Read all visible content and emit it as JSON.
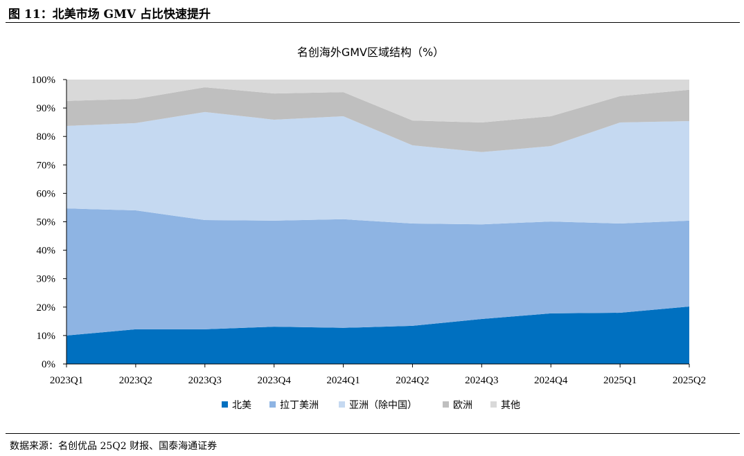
{
  "header": {
    "title": "图 11：北美市场 GMV 占比快速提升"
  },
  "footer": {
    "source": "数据来源：名创优品 25Q2 财报、国泰海通证券"
  },
  "chart_data": {
    "type": "area",
    "stacked": true,
    "title": "名创海外GMV区域结构（%）",
    "xlabel": "",
    "ylabel": "",
    "ylim": [
      0,
      100
    ],
    "yticks": [
      "0%",
      "10%",
      "20%",
      "30%",
      "40%",
      "50%",
      "60%",
      "70%",
      "80%",
      "90%",
      "100%"
    ],
    "categories": [
      "2023Q1",
      "2023Q2",
      "2023Q3",
      "2023Q4",
      "2024Q1",
      "2024Q2",
      "2024Q3",
      "2024Q4",
      "2025Q1",
      "2025Q2"
    ],
    "legend_position": "bottom",
    "series": [
      {
        "name": "北美",
        "color": "#0070c0",
        "values": [
          10.0,
          12.2,
          12.2,
          13.1,
          12.7,
          13.4,
          15.8,
          17.8,
          18.0,
          20.2
        ]
      },
      {
        "name": "拉丁美洲",
        "color": "#8eb4e3",
        "values": [
          44.7,
          41.8,
          38.4,
          37.3,
          38.2,
          36.0,
          33.3,
          32.3,
          31.4,
          30.2
        ]
      },
      {
        "name": "亚洲（除中国）",
        "color": "#c5d9f1",
        "values": [
          29.0,
          30.7,
          38.0,
          35.5,
          36.2,
          27.5,
          25.4,
          26.5,
          35.5,
          35.0
        ]
      },
      {
        "name": "欧洲",
        "color": "#bfbfbf",
        "values": [
          8.8,
          8.5,
          8.7,
          9.2,
          8.5,
          8.7,
          10.4,
          10.5,
          9.3,
          11.0
        ]
      },
      {
        "name": "其他",
        "color": "#d9d9d9",
        "values": [
          7.5,
          6.8,
          2.7,
          4.9,
          4.4,
          14.4,
          15.1,
          12.9,
          5.8,
          3.6
        ]
      }
    ]
  }
}
